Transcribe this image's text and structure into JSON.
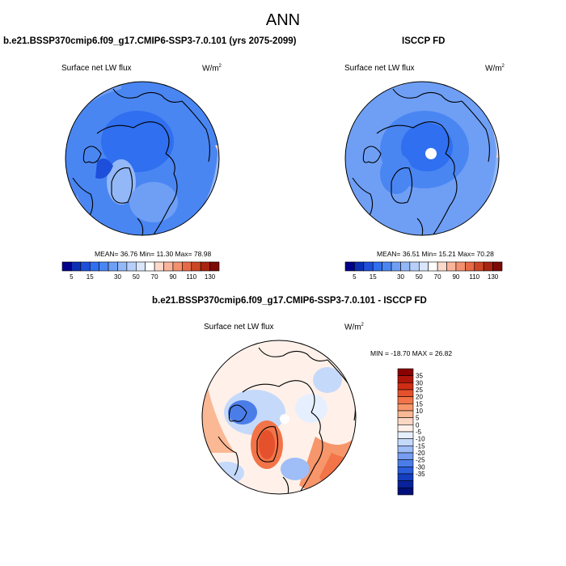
{
  "figure": {
    "title": "ANN"
  },
  "panels": [
    {
      "title": "b.e21.BSSP370cmip6.f09_g17.CMIP6-SSP3-7.0.101 (yrs 2075-2099)",
      "variable": "Surface net LW flux",
      "units": "W/m",
      "units_exp": "2",
      "stats": "MEAN= 36.76  Min= 11.30  Max= 78.98",
      "stats_values": {
        "mean": 36.76,
        "min": 11.3,
        "max": 78.98
      }
    },
    {
      "title": "ISCCP FD",
      "variable": "Surface net LW flux",
      "units": "W/m",
      "units_exp": "2",
      "stats": "MEAN= 36.51  Min= 15.21  Max= 70.28",
      "stats_values": {
        "mean": 36.51,
        "min": 15.21,
        "max": 70.28
      }
    },
    {
      "title": "b.e21.BSSP370cmip6.f09_g17.CMIP6-SSP3-7.0.101 - ISCCP FD",
      "variable": "Surface net LW flux",
      "units": "W/m",
      "units_exp": "2",
      "stats": "MIN = -18.70 MAX =  26.82",
      "stats_values": {
        "min": -18.7,
        "max": 26.82
      }
    }
  ],
  "colorbar_abs": {
    "labels": [
      "5",
      "15",
      "30",
      "50",
      "70",
      "90",
      "110",
      "130"
    ],
    "levels": [
      5,
      10,
      15,
      20,
      25,
      30,
      40,
      50,
      60,
      70,
      80,
      90,
      100,
      110,
      120,
      130
    ],
    "colors": [
      "#00008b",
      "#0a2fb5",
      "#1d4fdb",
      "#2f6ff0",
      "#4a86f2",
      "#6f9ff5",
      "#93b8f7",
      "#b7cffa",
      "#d9e6fc",
      "#ffffff",
      "#fcd9cb",
      "#f9b59b",
      "#f3906e",
      "#e66a46",
      "#cc4524",
      "#a9230f",
      "#7d0a05"
    ]
  },
  "colorbar_diff": {
    "labels": [
      "35",
      "30",
      "25",
      "20",
      "15",
      "10",
      "5",
      "0",
      "-5",
      "-10",
      "-15",
      "-20",
      "-25",
      "-30",
      "-35"
    ],
    "colors": [
      "#8b0000",
      "#b0150a",
      "#cf2e14",
      "#e5512c",
      "#f27448",
      "#f7966b",
      "#fab895",
      "#fcd7c4",
      "#fff1ea",
      "#e6effd",
      "#c5d9fb",
      "#9fbdf6",
      "#769df1",
      "#4b7de9",
      "#2a5ddb",
      "#143ec0",
      "#09229a",
      "#00107a"
    ]
  }
}
